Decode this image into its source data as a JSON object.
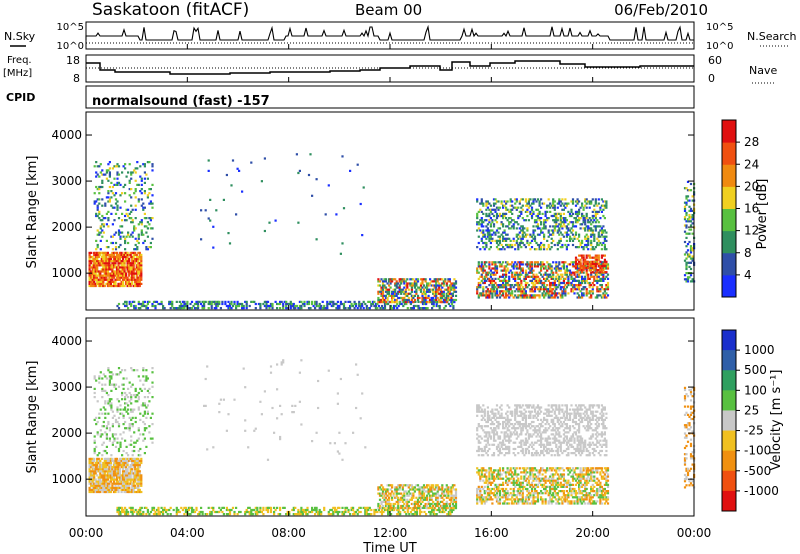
{
  "header": {
    "site": "Saskatoon (fitACF)",
    "beam": "Beam 00",
    "date": "06/Feb/2010"
  },
  "labels": {
    "nsky": "N.Sky",
    "nsearch": "N.Search",
    "freq_line1": "Freq.",
    "freq_line2": "[MHz]",
    "nave": "Nave",
    "cpid": "CPID",
    "cpid_value": "normalsound (fast) -157",
    "nsky_ticks": [
      "10^5",
      "10^0"
    ],
    "nsearch_ticks": [
      "10^5",
      "10^0"
    ],
    "freq_ticks": [
      "18",
      "8"
    ],
    "nave_ticks": [
      "60",
      "0"
    ]
  },
  "chart_data": [
    {
      "type": "heatmap",
      "name": "power",
      "ylabel": "Slant Range [km]",
      "yticks": [
        "1000",
        "2000",
        "3000",
        "4000"
      ],
      "ylim": [
        200,
        4500
      ],
      "colorbar_label": "Power [dB]",
      "colorbar_ticks": [
        "4",
        "8",
        "12",
        "16",
        "20",
        "24",
        "28"
      ],
      "colors": [
        "#1a2fff",
        "#2f4fa8",
        "#2f8f5f",
        "#58c040",
        "#f0d020",
        "#f08a10",
        "#f05010",
        "#e01010"
      ]
    },
    {
      "type": "heatmap",
      "name": "velocity",
      "ylabel": "Slant Range [km]",
      "yticks": [
        "1000",
        "2000",
        "3000",
        "4000"
      ],
      "ylim": [
        200,
        4500
      ],
      "colorbar_label": "Velocity [m s⁻¹]",
      "colorbar_ticks": [
        "1000",
        "500",
        "100",
        "25",
        "-25",
        "-100",
        "-500",
        "-1000"
      ],
      "colors": [
        "#1a2fcc",
        "#2f5fa8",
        "#2f9f5f",
        "#58c040",
        "#c8c8c8",
        "#f0c020",
        "#f09010",
        "#f05010",
        "#e01010"
      ]
    }
  ],
  "xaxis": {
    "label": "Time UT",
    "ticks": [
      "00:00",
      "04:00",
      "08:00",
      "12:00",
      "16:00",
      "20:00",
      "00:00"
    ]
  }
}
